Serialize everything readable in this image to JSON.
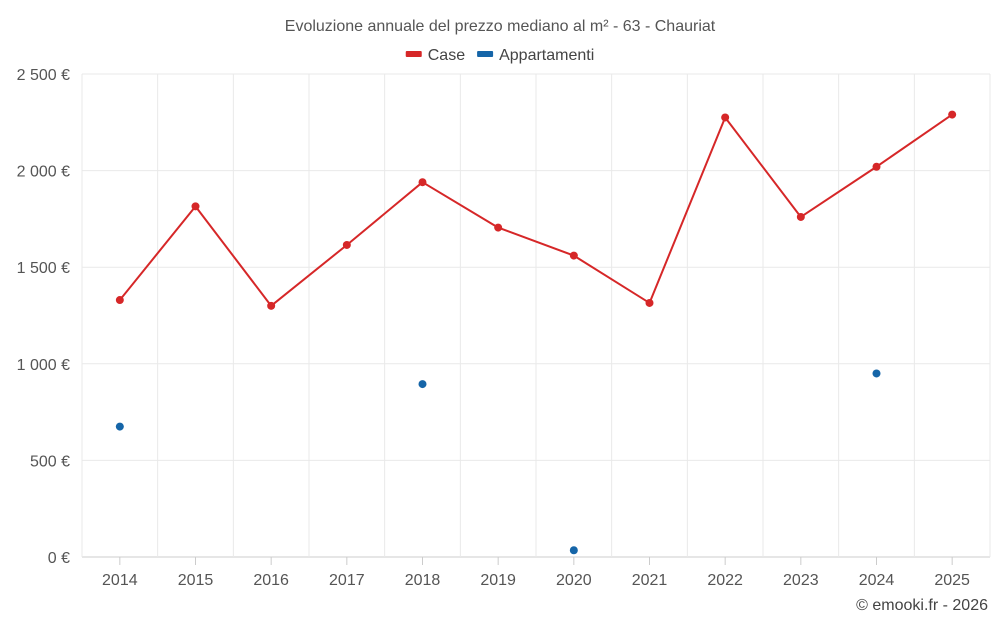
{
  "chart_data": {
    "type": "line",
    "title": "Evoluzione annuale del prezzo mediano al m² - 63 - Chauriat",
    "categories": [
      "2014",
      "2015",
      "2016",
      "2017",
      "2018",
      "2019",
      "2020",
      "2021",
      "2022",
      "2023",
      "2024",
      "2025"
    ],
    "series": [
      {
        "name": "Case",
        "color": "#d62728",
        "mode": "line+markers",
        "values": [
          1330,
          1815,
          1300,
          1615,
          1940,
          1705,
          1560,
          1315,
          2275,
          1760,
          2020,
          2290
        ]
      },
      {
        "name": "Appartamenti",
        "color": "#1565a8",
        "mode": "markers",
        "values": [
          675,
          null,
          null,
          null,
          895,
          null,
          35,
          null,
          null,
          null,
          950,
          null
        ]
      }
    ],
    "ylim": [
      0,
      2500
    ],
    "yticks": [
      0,
      500,
      1000,
      1500,
      2000,
      2500
    ],
    "ytick_labels": [
      "0 €",
      "500 €",
      "1 000 €",
      "1 500 €",
      "2 000 €",
      "2 500 €"
    ],
    "xlabel": "",
    "ylabel": "",
    "grid": true,
    "legend_position": "top-center"
  },
  "credit": "© emooki.fr - 2026"
}
